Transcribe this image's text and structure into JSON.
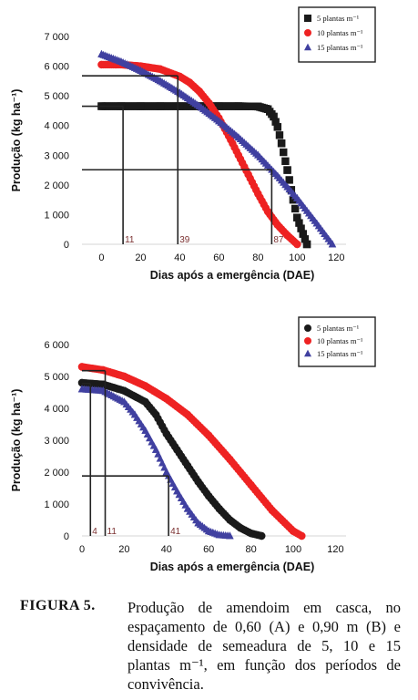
{
  "chart_data": [
    {
      "type": "scatter",
      "panel": "A",
      "ylabel": "Produção (kg ha⁻¹)",
      "xlabel": "Dias após a emergência (DAE)",
      "xlim": [
        -10,
        125
      ],
      "ylim": [
        0,
        7000
      ],
      "xticks": [
        0,
        20,
        40,
        60,
        80,
        100,
        120
      ],
      "yticks": [
        0,
        1000,
        2000,
        3000,
        4000,
        5000,
        6000,
        7000
      ],
      "ytick_labels": [
        "0",
        "1 000",
        "2 000",
        "3 000",
        "4 000",
        "5 000",
        "6 000",
        "7 000"
      ],
      "legend_position": "top-right",
      "series": [
        {
          "name": "5 plantas m⁻¹",
          "color": "#1a1a1a",
          "marker": "square",
          "x": [
            0,
            10,
            20,
            30,
            40,
            50,
            60,
            70,
            80,
            85,
            88,
            90,
            92,
            95,
            98,
            100,
            103,
            105
          ],
          "y": [
            4650,
            4650,
            4650,
            4650,
            4650,
            4650,
            4650,
            4650,
            4640,
            4550,
            4300,
            3950,
            3400,
            2500,
            1500,
            900,
            350,
            0
          ]
        },
        {
          "name": "10 plantas m⁻¹",
          "color": "#ee2222",
          "marker": "circle",
          "x": [
            0,
            10,
            20,
            30,
            40,
            45,
            50,
            55,
            60,
            65,
            70,
            75,
            80,
            85,
            90,
            95,
            100
          ],
          "y": [
            6050,
            6050,
            6000,
            5900,
            5650,
            5450,
            5150,
            4750,
            4250,
            3650,
            3000,
            2350,
            1700,
            1100,
            650,
            300,
            0
          ]
        },
        {
          "name": "15 plantas m⁻¹",
          "color": "#4040a0",
          "marker": "triangle",
          "x": [
            0,
            10,
            20,
            30,
            40,
            50,
            60,
            70,
            80,
            90,
            100,
            110,
            118
          ],
          "y": [
            6400,
            6150,
            5850,
            5500,
            5100,
            4650,
            4150,
            3600,
            3000,
            2300,
            1550,
            700,
            0
          ]
        }
      ],
      "reference_lines": [
        {
          "value": 11,
          "label": "11"
        },
        {
          "value": 39,
          "label": "39"
        },
        {
          "value": 87,
          "label": "87"
        }
      ]
    },
    {
      "type": "scatter",
      "panel": "B",
      "ylabel": "Produção (kg ha⁻¹)",
      "xlabel": "Dias após a emergência (DAE)",
      "xlim": [
        0,
        125
      ],
      "ylim": [
        0,
        6000
      ],
      "xticks": [
        0,
        20,
        40,
        60,
        80,
        100,
        120
      ],
      "yticks": [
        0,
        1000,
        2000,
        3000,
        4000,
        5000,
        6000
      ],
      "ytick_labels": [
        "0",
        "1 000",
        "2 000",
        "3 000",
        "4 000",
        "5 000",
        "6 000"
      ],
      "legend_position": "top-right",
      "series": [
        {
          "name": "5 plantas m⁻¹",
          "color": "#1a1a1a",
          "marker": "circle",
          "x": [
            0,
            10,
            20,
            30,
            35,
            40,
            45,
            50,
            55,
            60,
            65,
            70,
            75,
            80,
            85
          ],
          "y": [
            4800,
            4750,
            4550,
            4200,
            3800,
            3200,
            2700,
            2200,
            1700,
            1250,
            850,
            500,
            250,
            80,
            0
          ]
        },
        {
          "name": "10 plantas m⁻¹",
          "color": "#ee2222",
          "marker": "circle",
          "x": [
            0,
            10,
            20,
            30,
            40,
            50,
            60,
            70,
            80,
            90,
            100,
            104
          ],
          "y": [
            5300,
            5200,
            5000,
            4700,
            4300,
            3800,
            3150,
            2400,
            1600,
            800,
            150,
            0
          ]
        },
        {
          "name": "15 plantas m⁻¹",
          "color": "#4040a0",
          "marker": "triangle",
          "x": [
            0,
            10,
            20,
            25,
            30,
            35,
            40,
            45,
            50,
            55,
            60,
            65,
            70
          ],
          "y": [
            4600,
            4550,
            4200,
            3800,
            3300,
            2700,
            2000,
            1400,
            850,
            400,
            150,
            30,
            0
          ]
        }
      ],
      "reference_lines": [
        {
          "value": 4,
          "label": "4"
        },
        {
          "value": 11,
          "label": "11"
        },
        {
          "value": 41,
          "label": "41"
        }
      ]
    }
  ],
  "caption": {
    "label": "FIGURA 5.",
    "text": "Produção de amendoim em casca, no espaçamento de 0,60 (A) e 0,90 m (B) e densidade de semeadura de 5, 10 e 15 plantas m⁻¹, em função dos períodos de convivência."
  }
}
